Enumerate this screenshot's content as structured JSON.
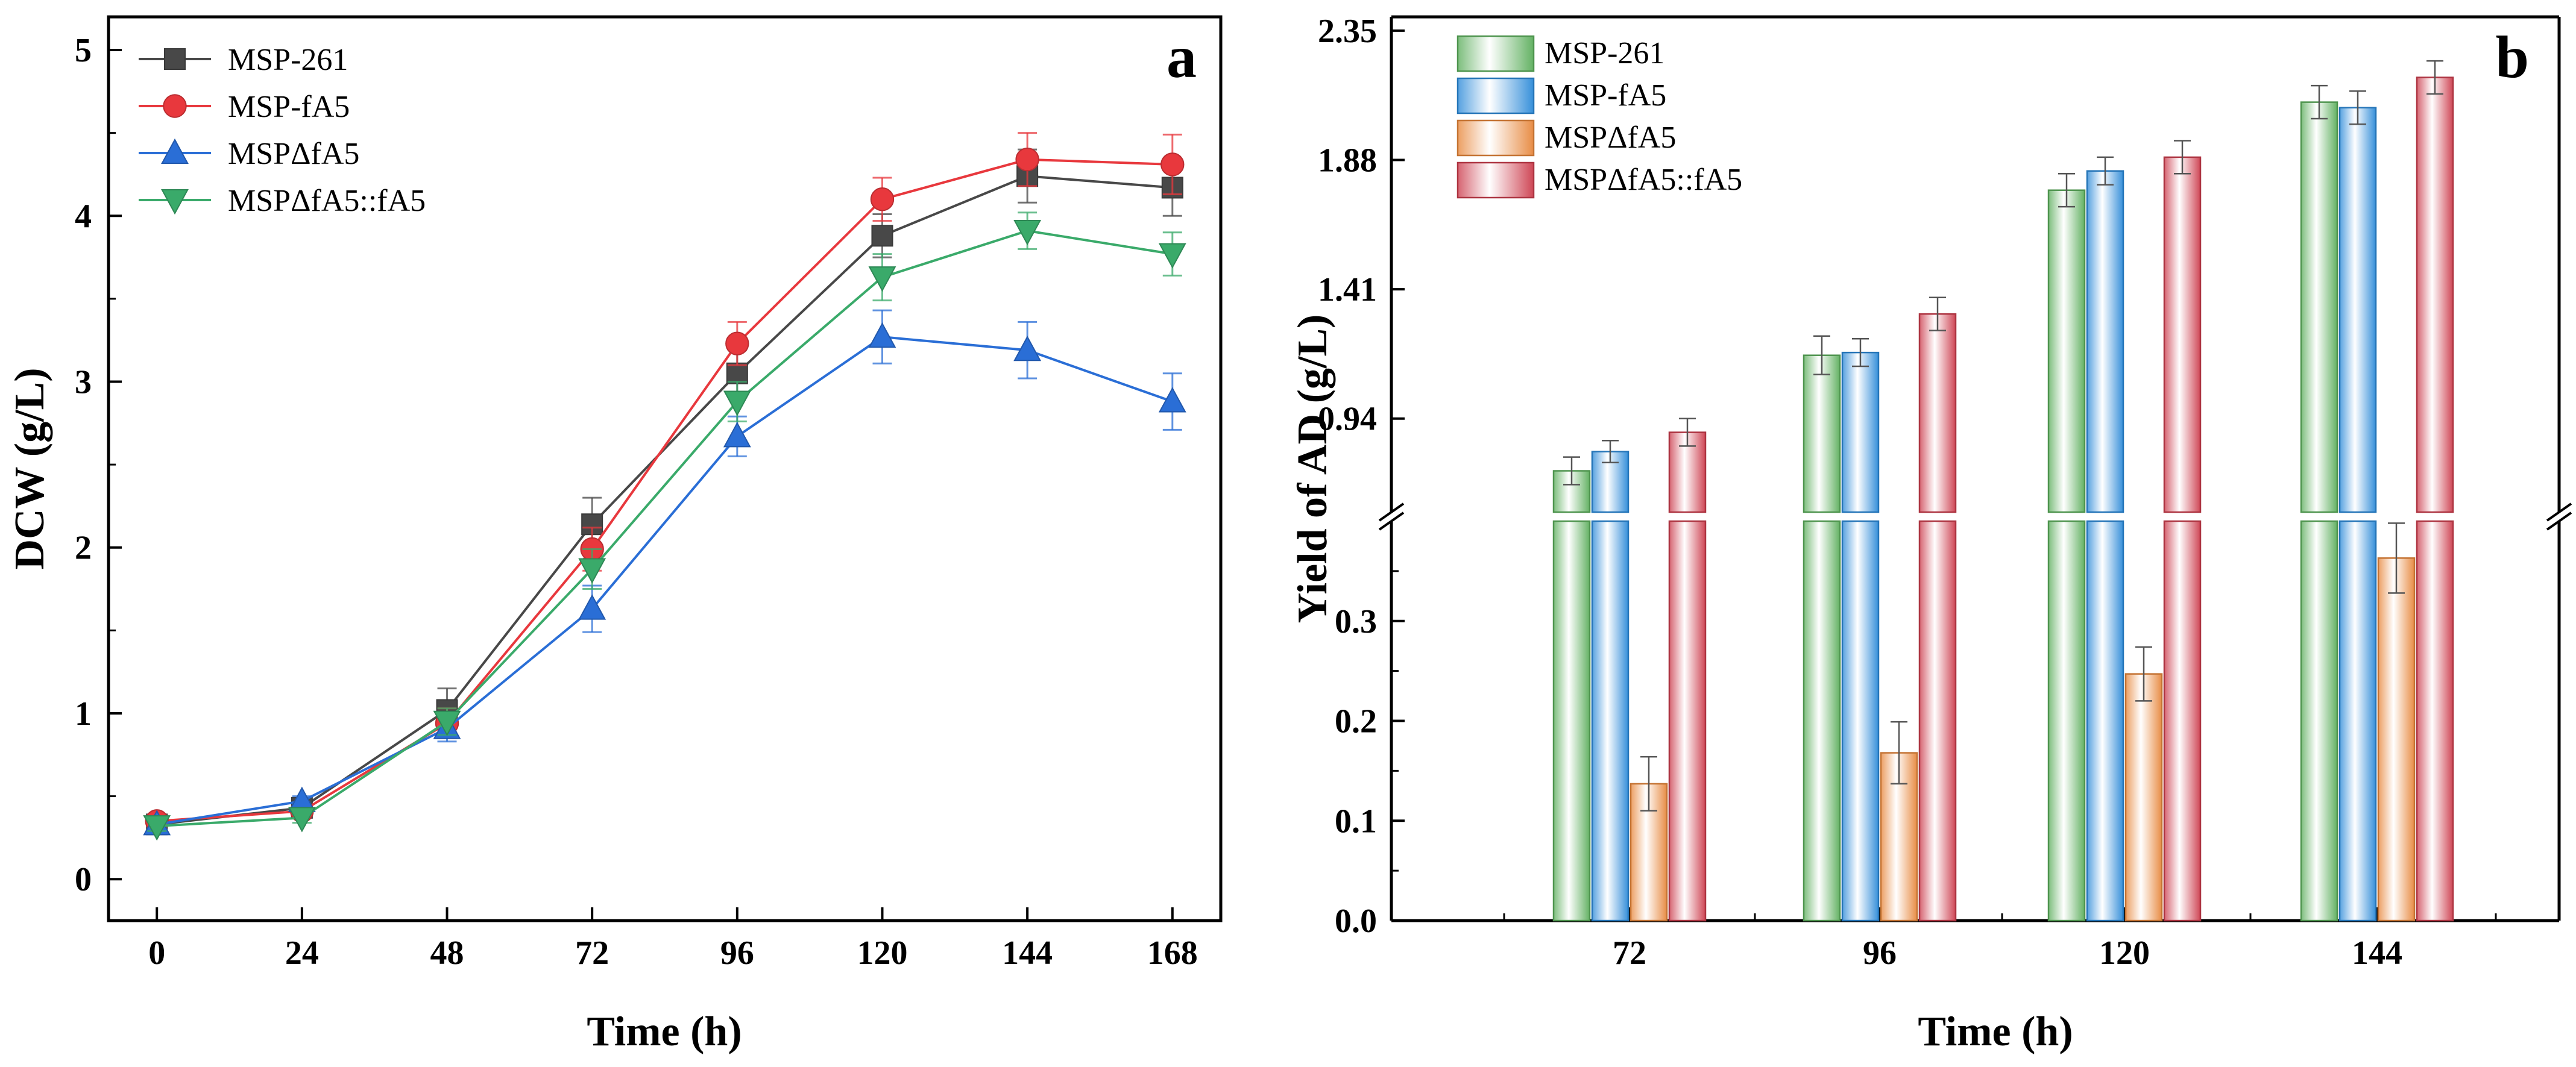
{
  "chart_data": [
    {
      "id": "a",
      "type": "line",
      "panel_label": "a",
      "xlabel": "Time (h)",
      "ylabel": "DCW (g/L)",
      "xlim": [
        -8,
        176
      ],
      "ylim": [
        -0.25,
        5.2
      ],
      "xticks": [
        0,
        24,
        48,
        72,
        96,
        120,
        144,
        168
      ],
      "yticks": [
        0,
        1,
        2,
        3,
        4,
        5
      ],
      "x": [
        0,
        24,
        48,
        72,
        96,
        120,
        144,
        168
      ],
      "legend_position": "top-left",
      "series": [
        {
          "name": "MSP-261",
          "marker": "square",
          "color": "#484848",
          "values": [
            0.33,
            0.43,
            1.02,
            2.14,
            3.05,
            3.88,
            4.24,
            4.17
          ],
          "errors": [
            0.03,
            0.03,
            0.13,
            0.16,
            0.14,
            0.13,
            0.16,
            0.17
          ]
        },
        {
          "name": "MSP-fA5",
          "marker": "circle",
          "color": "#e8383d",
          "values": [
            0.35,
            0.41,
            0.94,
            1.99,
            3.23,
            4.1,
            4.34,
            4.31
          ],
          "errors": [
            0.03,
            0.03,
            0.09,
            0.13,
            0.13,
            0.13,
            0.16,
            0.18
          ]
        },
        {
          "name": "MSPΔfA5",
          "marker": "triangle-up",
          "color": "#2a6ed6",
          "values": [
            0.33,
            0.47,
            0.91,
            1.63,
            2.67,
            3.27,
            3.19,
            2.88
          ],
          "errors": [
            0.03,
            0.03,
            0.08,
            0.14,
            0.12,
            0.16,
            0.17,
            0.17
          ]
        },
        {
          "name": "MSPΔfA5::fA5",
          "marker": "triangle-down",
          "color": "#3aaa6a",
          "values": [
            0.32,
            0.37,
            0.95,
            1.87,
            2.88,
            3.63,
            3.91,
            3.77
          ],
          "errors": [
            0.03,
            0.03,
            0.08,
            0.12,
            0.12,
            0.14,
            0.11,
            0.13
          ]
        }
      ]
    },
    {
      "id": "b",
      "type": "bar",
      "panel_label": "b",
      "xlabel": "Time (h)",
      "ylabel": "Yield of AD (g/L)",
      "categories": [
        "72",
        "96",
        "120",
        "144"
      ],
      "y_break": {
        "lower_range": [
          0,
          0.4
        ],
        "upper_range": [
          0.6,
          2.4
        ]
      },
      "yticks_lower": [
        "0.0",
        "0.1",
        "0.2",
        "0.3"
      ],
      "yticks_upper": [
        "0.94",
        "1.41",
        "1.88",
        "2.35"
      ],
      "legend_position": "top-left",
      "series": [
        {
          "name": "MSP-261",
          "color": "#5cae5c",
          "values": [
            0.75,
            1.17,
            1.77,
            2.09
          ],
          "errors": [
            0.05,
            0.07,
            0.06,
            0.06
          ]
        },
        {
          "name": "MSP-fA5",
          "color": "#2c8ad8",
          "values": [
            0.82,
            1.18,
            1.84,
            2.07
          ],
          "errors": [
            0.04,
            0.05,
            0.05,
            0.06
          ]
        },
        {
          "name": "MSPΔfA5",
          "color": "#e7873c",
          "values": [
            0.137,
            0.168,
            0.247,
            0.363
          ],
          "errors": [
            0.027,
            0.031,
            0.027,
            0.035
          ]
        },
        {
          "name": "MSPΔfA5::fA5",
          "color": "#cc3d4d",
          "values": [
            0.89,
            1.32,
            1.89,
            2.18
          ],
          "errors": [
            0.05,
            0.06,
            0.06,
            0.06
          ]
        }
      ]
    }
  ]
}
